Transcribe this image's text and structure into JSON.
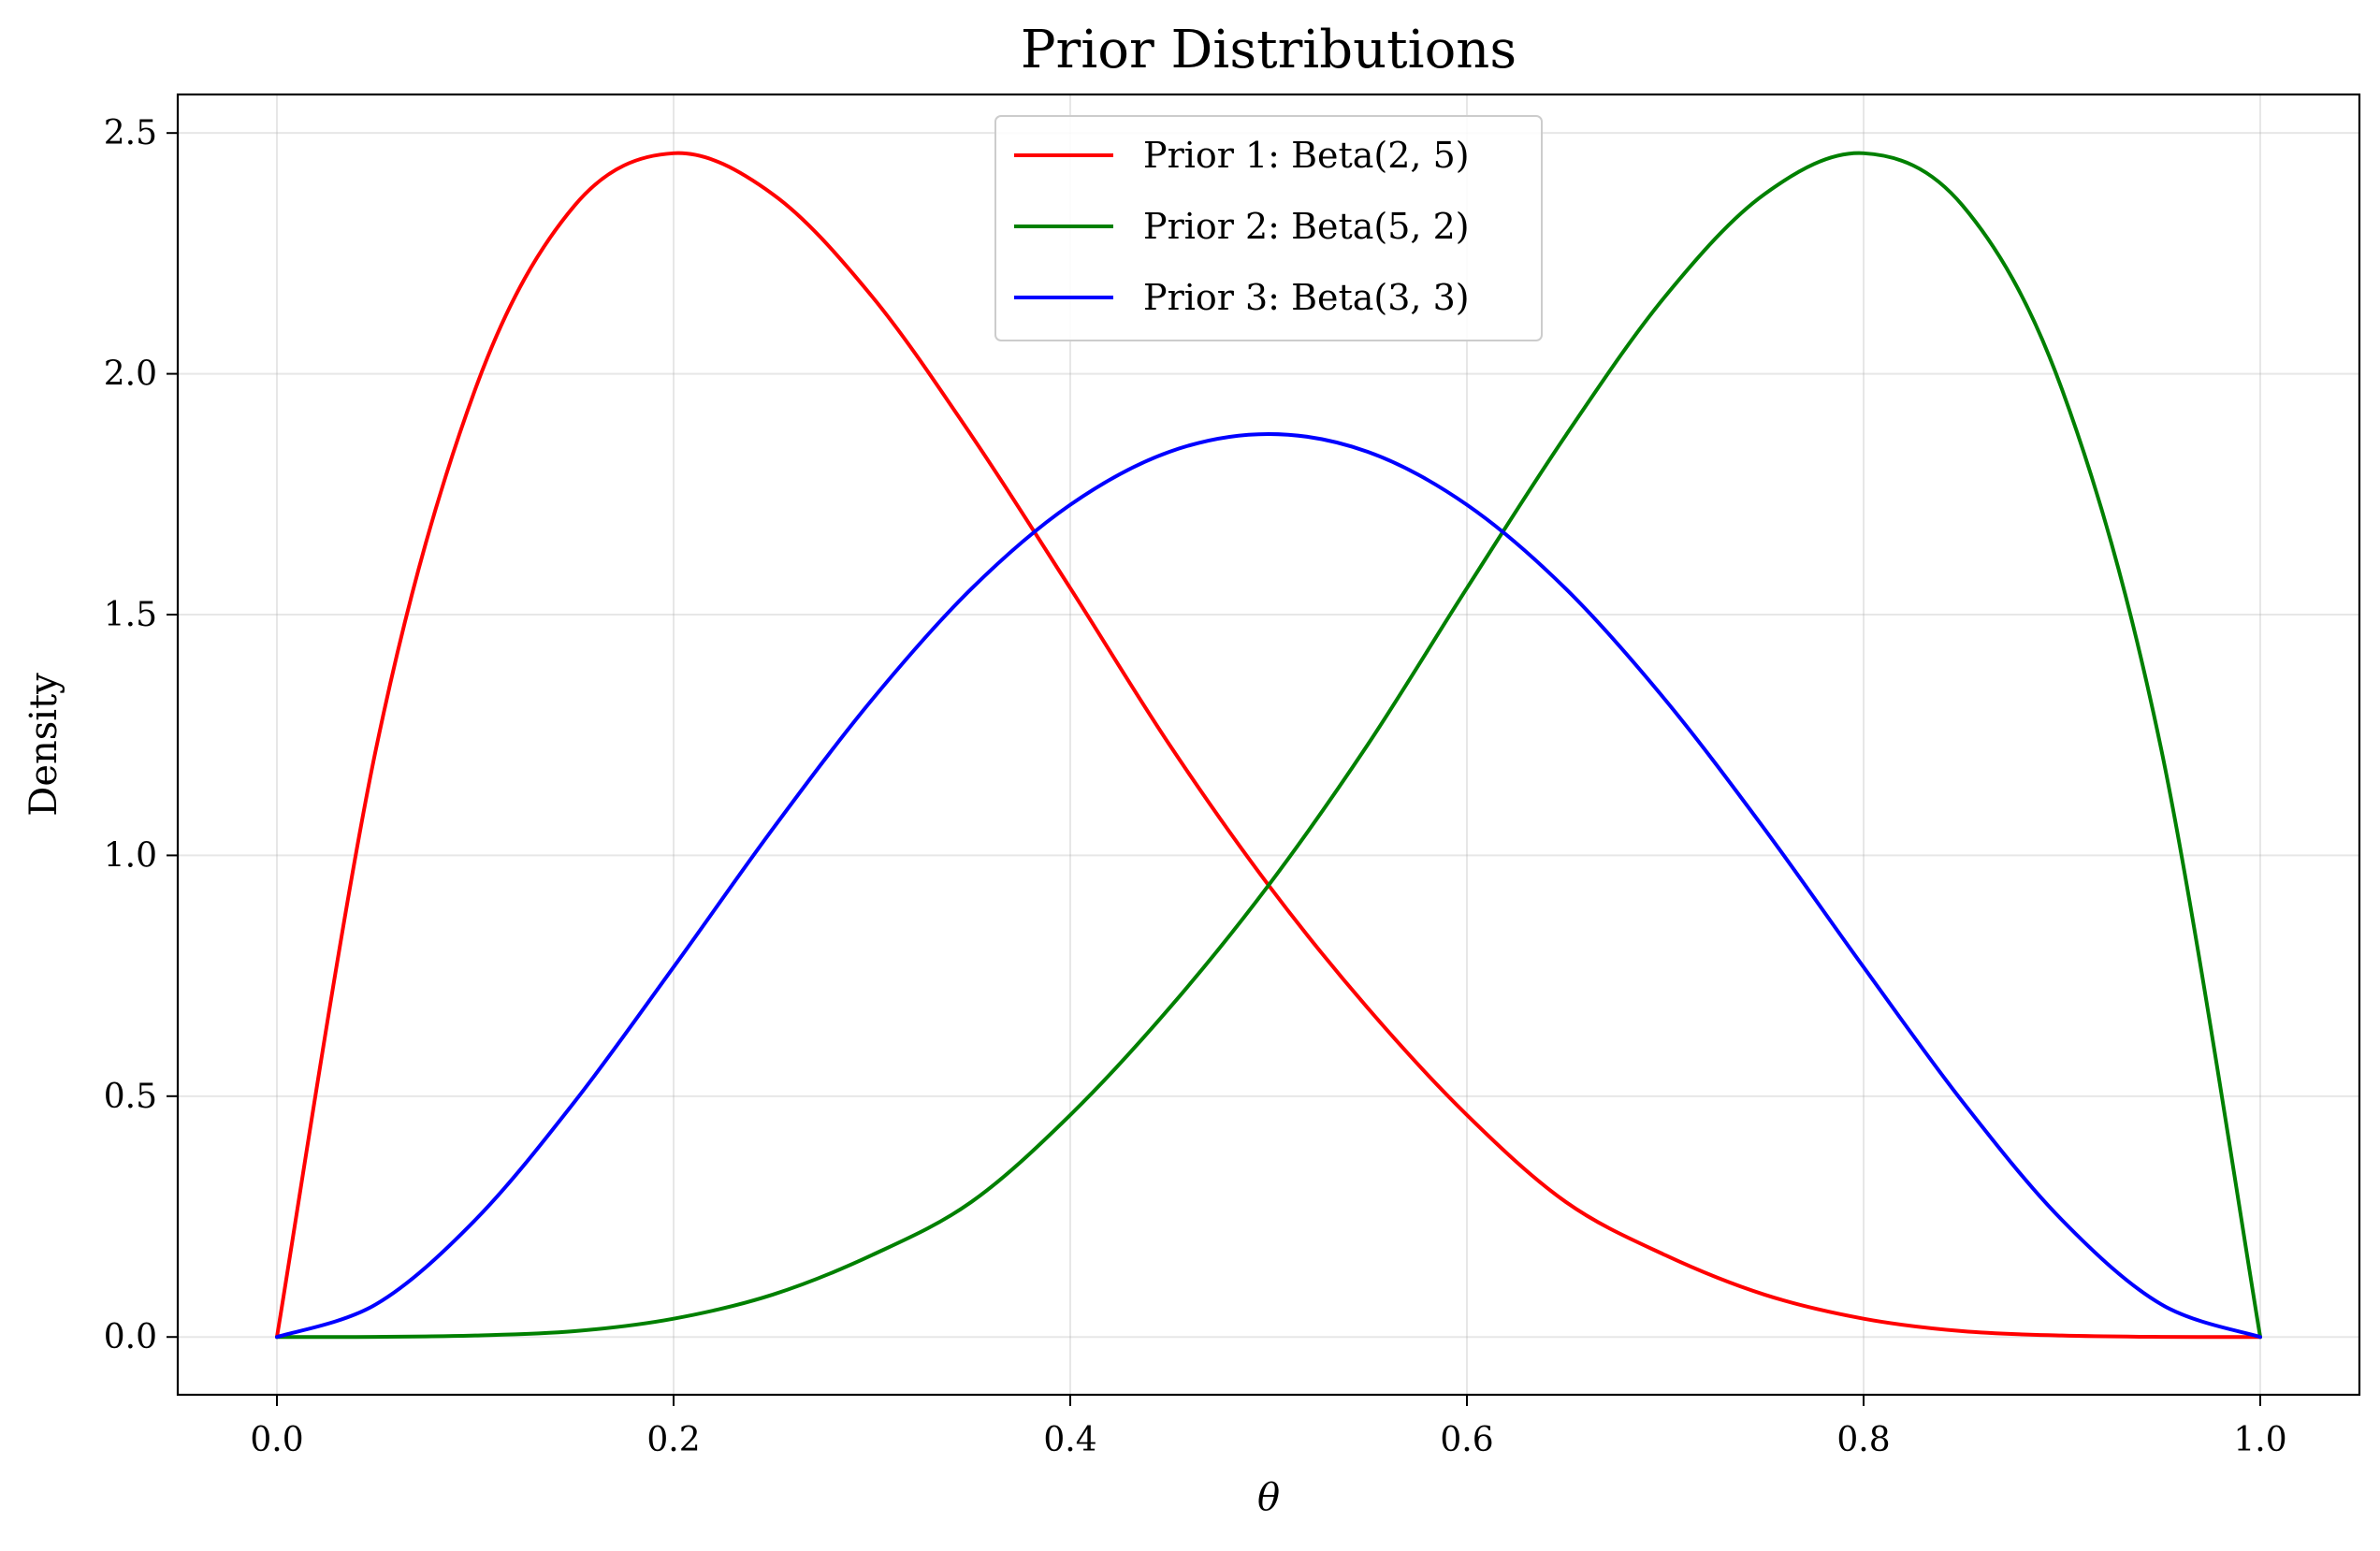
{
  "chart_data": {
    "type": "line",
    "title": "Prior Distributions",
    "xlabel": "θ",
    "ylabel": "Density",
    "xlim": [
      -0.05,
      1.05
    ],
    "ylim": [
      -0.12,
      2.58
    ],
    "x_ticks": [
      0.0,
      0.2,
      0.4,
      0.6,
      0.8,
      1.0
    ],
    "x_tick_labels": [
      "0.0",
      "0.2",
      "0.4",
      "0.6",
      "0.8",
      "1.0"
    ],
    "y_ticks": [
      0.0,
      0.5,
      1.0,
      1.5,
      2.0,
      2.5
    ],
    "y_tick_labels": [
      "0.0",
      "0.5",
      "1.0",
      "1.5",
      "2.0",
      "2.5"
    ],
    "grid": true,
    "legend_position": "top-center",
    "x": [
      0.0,
      0.05,
      0.1,
      0.15,
      0.2,
      0.25,
      0.3,
      0.35,
      0.4,
      0.45,
      0.5,
      0.55,
      0.6,
      0.65,
      0.7,
      0.75,
      0.8,
      0.85,
      0.9,
      0.95,
      1.0
    ],
    "series": [
      {
        "name": "Prior 1: Beta(2, 5)",
        "color": "#ff0000",
        "values": [
          0.0,
          1.222,
          1.968,
          2.349,
          2.458,
          2.373,
          2.161,
          1.873,
          1.555,
          1.23,
          0.938,
          0.683,
          0.461,
          0.28,
          0.17,
          0.088,
          0.038,
          0.012,
          0.003,
          0.0002,
          0.0
        ]
      },
      {
        "name": "Prior 2: Beta(5, 2)",
        "color": "#008000",
        "values": [
          0.0,
          0.0002,
          0.003,
          0.012,
          0.038,
          0.088,
          0.17,
          0.28,
          0.461,
          0.683,
          0.938,
          1.23,
          1.555,
          1.873,
          2.161,
          2.373,
          2.458,
          2.349,
          1.968,
          1.222,
          0.0
        ]
      },
      {
        "name": "Prior 3: Beta(3, 3)",
        "color": "#0000ff",
        "values": [
          0.0,
          0.068,
          0.243,
          0.488,
          0.768,
          1.055,
          1.323,
          1.553,
          1.728,
          1.838,
          1.875,
          1.838,
          1.728,
          1.553,
          1.323,
          1.055,
          0.768,
          0.488,
          0.243,
          0.068,
          0.0
        ]
      }
    ]
  }
}
